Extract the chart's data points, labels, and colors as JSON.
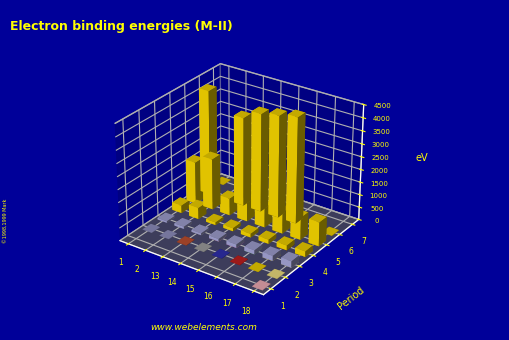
{
  "title": "Electron binding energies (M-II)",
  "background_color": "#000099",
  "floor_color": "#555555",
  "ylabel": "Period",
  "zlabel": "eV",
  "groups": [
    1,
    2,
    13,
    14,
    15,
    16,
    17,
    18
  ],
  "periods": [
    1,
    2,
    3,
    4,
    5,
    6,
    7
  ],
  "mii_bars": [
    {
      "period": 3,
      "group": 1,
      "energy": 63.5,
      "color": "#aaaadd"
    },
    {
      "period": 3,
      "group": 2,
      "energy": 88.7,
      "color": "#aaaadd"
    },
    {
      "period": 3,
      "group": 13,
      "energy": 73.4,
      "color": "#aaaadd"
    },
    {
      "period": 3,
      "group": 14,
      "energy": 99.0,
      "color": "#aaaadd"
    },
    {
      "period": 3,
      "group": 15,
      "energy": 136.0,
      "color": "#aaaadd"
    },
    {
      "period": 3,
      "group": 16,
      "energy": 163.0,
      "color": "#aaaadd"
    },
    {
      "period": 3,
      "group": 17,
      "energy": 202.0,
      "color": "#aaaadd"
    },
    {
      "period": 3,
      "group": 18,
      "energy": 250.0,
      "color": "#aaaadd"
    },
    {
      "period": 4,
      "group": 1,
      "energy": 297.3,
      "color": "#ffdd00"
    },
    {
      "period": 4,
      "group": 2,
      "energy": 438.4,
      "color": "#ffdd00"
    },
    {
      "period": 4,
      "group": 13,
      "energy": 106.8,
      "color": "#ffdd00"
    },
    {
      "period": 4,
      "group": 14,
      "energy": 120.4,
      "color": "#ffdd00"
    },
    {
      "period": 4,
      "group": 15,
      "energy": 146.2,
      "color": "#ffdd00"
    },
    {
      "period": 4,
      "group": 16,
      "energy": 166.5,
      "color": "#ffdd00"
    },
    {
      "period": 4,
      "group": 17,
      "energy": 189.3,
      "color": "#ffdd00"
    },
    {
      "period": 4,
      "group": 18,
      "energy": 214.4,
      "color": "#ffdd00"
    },
    {
      "period": 5,
      "group": 1,
      "energy": 1652.0,
      "color": "#ffdd00"
    },
    {
      "period": 5,
      "group": 2,
      "energy": 2007.0,
      "color": "#ffdd00"
    },
    {
      "period": 5,
      "group": 13,
      "energy": 665.3,
      "color": "#ffdd00"
    },
    {
      "period": 5,
      "group": 14,
      "energy": 756.5,
      "color": "#ffdd00"
    },
    {
      "period": 5,
      "group": 15,
      "energy": 769.1,
      "color": "#ffdd00"
    },
    {
      "period": 5,
      "group": 16,
      "energy": 834.0,
      "color": "#ffdd00"
    },
    {
      "period": 5,
      "group": 17,
      "energy": 875.0,
      "color": "#ffdd00"
    },
    {
      "period": 5,
      "group": 18,
      "energy": 937.0,
      "color": "#ffdd00"
    },
    {
      "period": 6,
      "group": 1,
      "energy": 4132.0,
      "color": "#ffdd00"
    },
    {
      "period": 6,
      "group": 13,
      "energy": 3491.0,
      "color": "#ffdd00"
    },
    {
      "period": 6,
      "group": 14,
      "energy": 3855.0,
      "color": "#ffdd00"
    },
    {
      "period": 6,
      "group": 15,
      "energy": 3999.0,
      "color": "#ffdd00"
    },
    {
      "period": 6,
      "group": 16,
      "energy": 4150.0,
      "color": "#ffdd00"
    }
  ],
  "flat_dots": [
    {
      "period": 1,
      "group": 18,
      "color": "#ffb6c1"
    },
    {
      "period": 2,
      "group": 1,
      "color": "#9999cc"
    },
    {
      "period": 2,
      "group": 2,
      "color": "#9999cc"
    },
    {
      "period": 2,
      "group": 13,
      "color": "#cc5533"
    },
    {
      "period": 2,
      "group": 14,
      "color": "#aaaaaa"
    },
    {
      "period": 2,
      "group": 15,
      "color": "#3333bb"
    },
    {
      "period": 2,
      "group": 16,
      "color": "#cc2222"
    },
    {
      "period": 2,
      "group": 17,
      "color": "#ffdd00"
    },
    {
      "period": 2,
      "group": 18,
      "color": "#ffee88"
    },
    {
      "period": 3,
      "group": 13,
      "color": "#aaaaaa"
    },
    {
      "period": 3,
      "group": 14,
      "color": "#ff88aa"
    },
    {
      "period": 3,
      "group": 15,
      "color": "#ff44cc"
    },
    {
      "period": 3,
      "group": 16,
      "color": "#33aa33"
    },
    {
      "period": 3,
      "group": 17,
      "color": "#ffdd00"
    },
    {
      "period": 3,
      "group": 18,
      "color": "#ffee88"
    },
    {
      "period": 4,
      "group": 17,
      "color": "#880000"
    },
    {
      "period": 4,
      "group": 18,
      "color": "#ffdd00"
    },
    {
      "period": 5,
      "group": 18,
      "color": "#ffdd00"
    },
    {
      "period": 6,
      "group": 18,
      "color": "#ffdd00"
    },
    {
      "period": 7,
      "group": 1,
      "color": "#ffdd00"
    }
  ],
  "zlim": [
    0,
    4500
  ],
  "zticks": [
    0,
    500,
    1000,
    1500,
    2000,
    2500,
    3000,
    3500,
    4000,
    4500
  ],
  "website": "www.webelements.com",
  "copyright": "©1998,1999 Mark",
  "elev": 28,
  "azim": -55
}
